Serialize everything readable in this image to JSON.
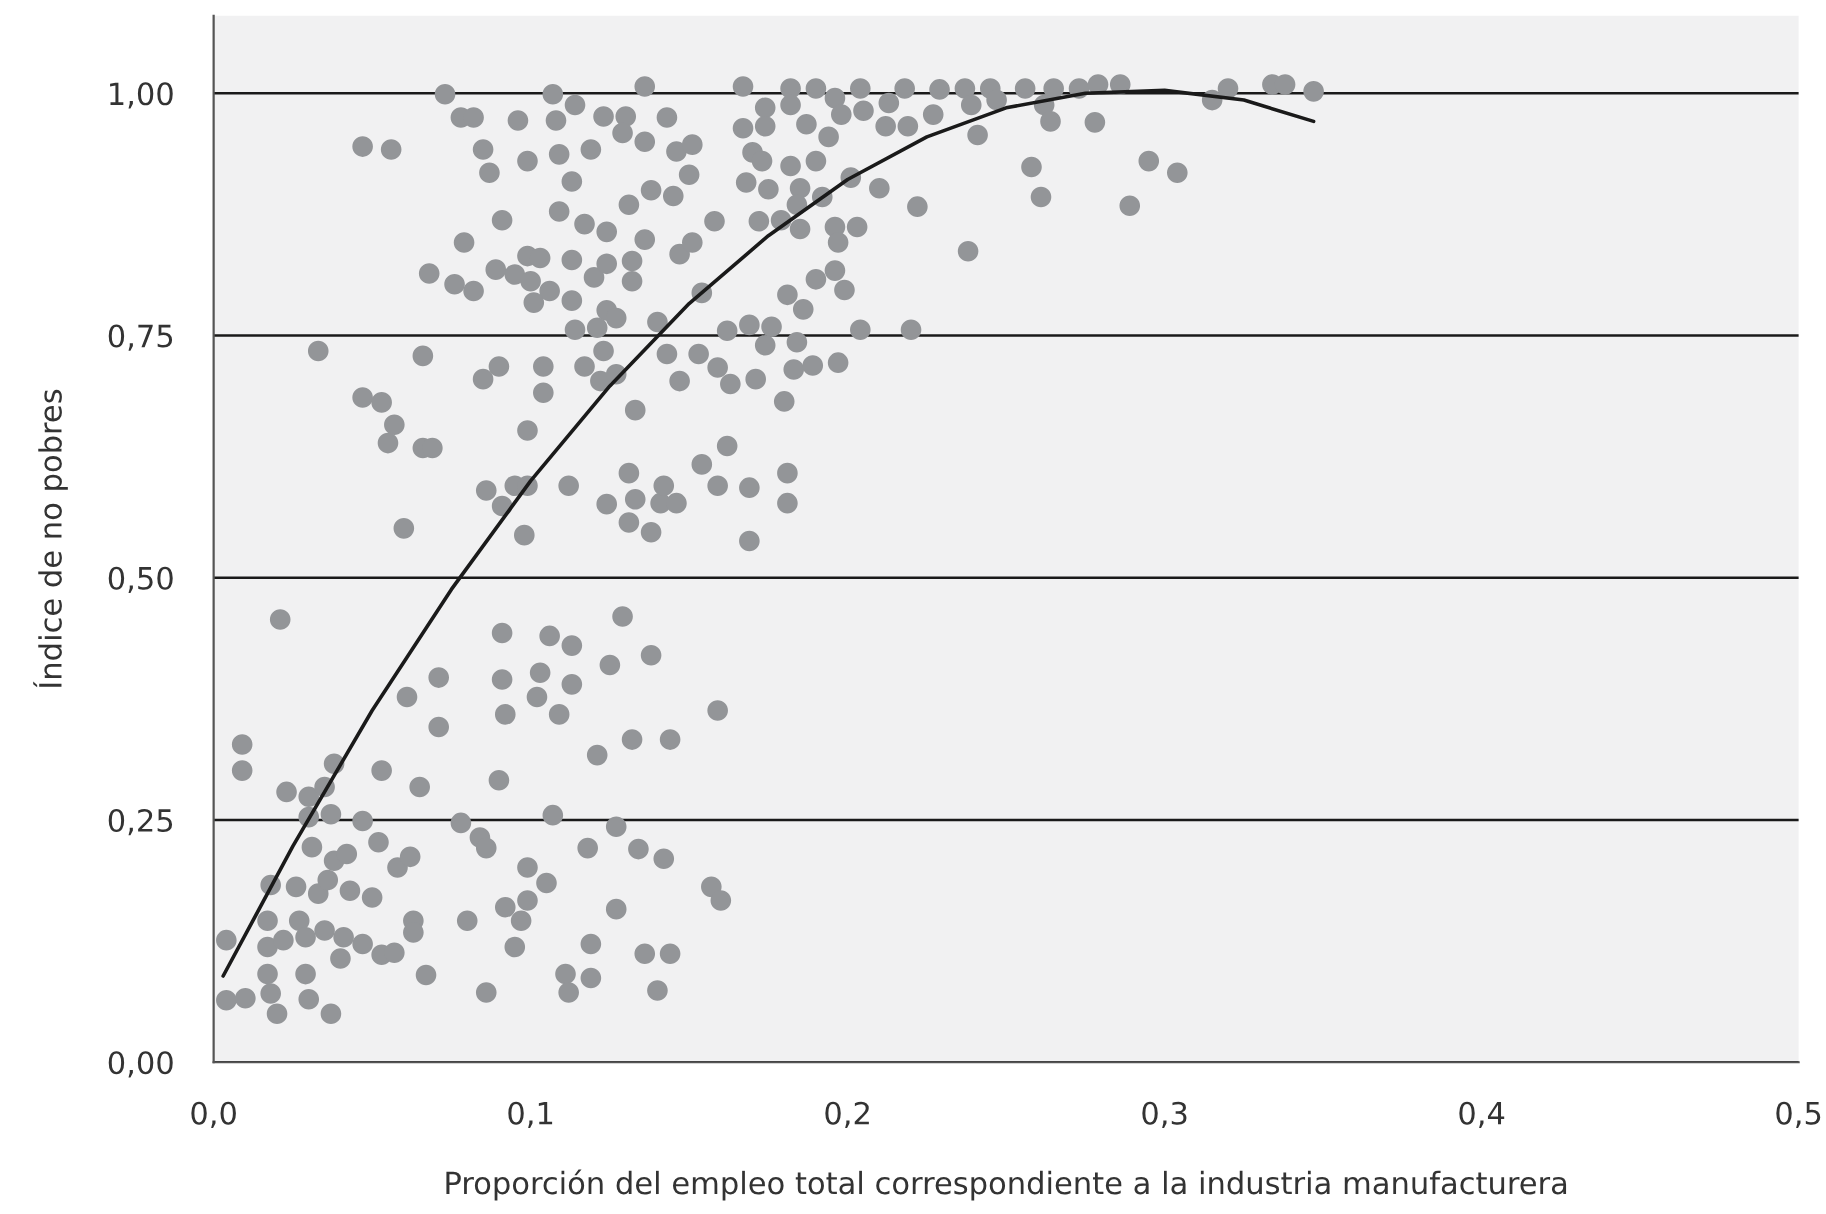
{
  "chart_data": {
    "type": "scatter",
    "xlabel": "Proporción del empleo total correspondiente a la industria manufacturera",
    "ylabel": "Índice de no pobres",
    "xlim": [
      0,
      0.5
    ],
    "ylim": [
      0,
      1.08
    ],
    "xticks": [
      {
        "value": 0,
        "label": "0,0"
      },
      {
        "value": 0.1,
        "label": "0,1"
      },
      {
        "value": 0.2,
        "label": "0,2"
      },
      {
        "value": 0.3,
        "label": "0,3"
      },
      {
        "value": 0.4,
        "label": "0,4"
      },
      {
        "value": 0.5,
        "label": "0,5"
      }
    ],
    "yticks": [
      {
        "value": 0,
        "label": "0,00"
      },
      {
        "value": 0.25,
        "label": "0,25"
      },
      {
        "value": 0.5,
        "label": "0,50"
      },
      {
        "value": 0.75,
        "label": "0,75"
      },
      {
        "value": 1,
        "label": "1,00"
      }
    ],
    "grid": "y",
    "marker": "circle",
    "series": [
      {
        "color": "#939598",
        "x": [
          0.004,
          0.004,
          0.01,
          0.009,
          0.009,
          0.017,
          0.018,
          0.017,
          0.02,
          0.018,
          0.017,
          0.022,
          0.021,
          0.023,
          0.026,
          0.027,
          0.029,
          0.03,
          0.029,
          0.03,
          0.03,
          0.031,
          0.033,
          0.035,
          0.036,
          0.037,
          0.038,
          0.038,
          0.037,
          0.035,
          0.04,
          0.042,
          0.041,
          0.043,
          0.047,
          0.047,
          0.05,
          0.052,
          0.053,
          0.053,
          0.057,
          0.058,
          0.062,
          0.063,
          0.063,
          0.067,
          0.065,
          0.061,
          0.071,
          0.071,
          0.078,
          0.08,
          0.084,
          0.086,
          0.086,
          0.09,
          0.091,
          0.091,
          0.092,
          0.092,
          0.095,
          0.097,
          0.099,
          0.099,
          0.105,
          0.103,
          0.102,
          0.106,
          0.107,
          0.109,
          0.111,
          0.112,
          0.113,
          0.113,
          0.119,
          0.119,
          0.118,
          0.121,
          0.127,
          0.127,
          0.125,
          0.132,
          0.134,
          0.136,
          0.14,
          0.142,
          0.144,
          0.144,
          0.138,
          0.157,
          0.16,
          0.159,
          0.129,
          0.073,
          0.078,
          0.082,
          0.096,
          0.108,
          0.107,
          0.114,
          0.123,
          0.13,
          0.136,
          0.143,
          0.047,
          0.056,
          0.085,
          0.099,
          0.109,
          0.119,
          0.087,
          0.113,
          0.129,
          0.136,
          0.146,
          0.151,
          0.15,
          0.091,
          0.079,
          0.109,
          0.117,
          0.124,
          0.131,
          0.138,
          0.145,
          0.158,
          0.099,
          0.103,
          0.089,
          0.068,
          0.076,
          0.082,
          0.095,
          0.1,
          0.106,
          0.113,
          0.12,
          0.124,
          0.132,
          0.132,
          0.136,
          0.147,
          0.151,
          0.101,
          0.113,
          0.124,
          0.127,
          0.114,
          0.121,
          0.14,
          0.154,
          0.162,
          0.033,
          0.066,
          0.09,
          0.085,
          0.104,
          0.104,
          0.117,
          0.122,
          0.127,
          0.123,
          0.143,
          0.147,
          0.153,
          0.159,
          0.163,
          0.047,
          0.053,
          0.057,
          0.055,
          0.066,
          0.069,
          0.099,
          0.133,
          0.162,
          0.154,
          0.06,
          0.086,
          0.095,
          0.099,
          0.091,
          0.112,
          0.124,
          0.131,
          0.133,
          0.141,
          0.146,
          0.142,
          0.159,
          0.169,
          0.098,
          0.131,
          0.138,
          0.169,
          0.167,
          0.182,
          0.19,
          0.204,
          0.218,
          0.229,
          0.237,
          0.245,
          0.256,
          0.265,
          0.273,
          0.279,
          0.286,
          0.32,
          0.315,
          0.334,
          0.338,
          0.347,
          0.174,
          0.182,
          0.196,
          0.213,
          0.239,
          0.247,
          0.262,
          0.198,
          0.187,
          0.174,
          0.167,
          0.212,
          0.219,
          0.227,
          0.205,
          0.194,
          0.241,
          0.264,
          0.278,
          0.295,
          0.304,
          0.258,
          0.261,
          0.289,
          0.17,
          0.173,
          0.182,
          0.19,
          0.168,
          0.175,
          0.185,
          0.192,
          0.201,
          0.21,
          0.222,
          0.184,
          0.172,
          0.179,
          0.185,
          0.196,
          0.203,
          0.197,
          0.238,
          0.19,
          0.196,
          0.199,
          0.181,
          0.186,
          0.169,
          0.176,
          0.204,
          0.22,
          0.174,
          0.184,
          0.183,
          0.189,
          0.197,
          0.171,
          0.18,
          0.181,
          0.181
        ],
        "values": [
          0.126,
          0.064,
          0.066,
          0.328,
          0.301,
          0.119,
          0.071,
          0.091,
          0.05,
          0.183,
          0.146,
          0.126,
          0.457,
          0.279,
          0.181,
          0.146,
          0.129,
          0.274,
          0.091,
          0.065,
          0.253,
          0.222,
          0.174,
          0.284,
          0.188,
          0.256,
          0.308,
          0.208,
          0.05,
          0.136,
          0.107,
          0.215,
          0.129,
          0.177,
          0.122,
          0.249,
          0.17,
          0.227,
          0.301,
          0.111,
          0.113,
          0.201,
          0.212,
          0.146,
          0.134,
          0.09,
          0.284,
          0.377,
          0.346,
          0.397,
          0.247,
          0.146,
          0.232,
          0.221,
          0.072,
          0.291,
          0.395,
          0.443,
          0.359,
          0.16,
          0.119,
          0.146,
          0.167,
          0.201,
          0.185,
          0.402,
          0.377,
          0.44,
          0.255,
          0.359,
          0.091,
          0.072,
          0.39,
          0.43,
          0.122,
          0.087,
          0.221,
          0.317,
          0.243,
          0.158,
          0.41,
          0.333,
          0.22,
          0.112,
          0.074,
          0.21,
          0.112,
          0.333,
          0.42,
          0.181,
          0.167,
          0.363,
          0.46,
          0.999,
          0.975,
          0.975,
          0.972,
          0.972,
          0.999,
          0.988,
          0.976,
          0.976,
          1.007,
          0.975,
          0.945,
          0.942,
          0.942,
          0.93,
          0.937,
          0.942,
          0.918,
          0.909,
          0.959,
          0.95,
          0.94,
          0.947,
          0.916,
          0.869,
          0.846,
          0.878,
          0.865,
          0.857,
          0.885,
          0.9,
          0.894,
          0.868,
          0.832,
          0.83,
          0.818,
          0.814,
          0.803,
          0.796,
          0.813,
          0.806,
          0.796,
          0.828,
          0.81,
          0.824,
          0.827,
          0.806,
          0.849,
          0.834,
          0.846,
          0.784,
          0.786,
          0.776,
          0.768,
          0.756,
          0.758,
          0.764,
          0.794,
          0.755,
          0.734,
          0.729,
          0.718,
          0.705,
          0.718,
          0.691,
          0.718,
          0.703,
          0.71,
          0.734,
          0.731,
          0.703,
          0.731,
          0.717,
          0.7,
          0.686,
          0.681,
          0.658,
          0.639,
          0.634,
          0.634,
          0.652,
          0.673,
          0.636,
          0.617,
          0.551,
          0.59,
          0.595,
          0.595,
          0.574,
          0.595,
          0.576,
          0.608,
          0.581,
          0.577,
          0.577,
          0.595,
          0.595,
          0.593,
          0.544,
          0.557,
          0.547,
          0.538,
          1.007,
          1.005,
          1.005,
          1.005,
          1.005,
          1.004,
          1.005,
          1.005,
          1.005,
          1.005,
          1.005,
          1.009,
          1.009,
          1.005,
          0.993,
          1.009,
          1.009,
          1.002,
          0.985,
          0.988,
          0.995,
          0.99,
          0.988,
          0.993,
          0.988,
          0.978,
          0.968,
          0.966,
          0.964,
          0.966,
          0.966,
          0.978,
          0.982,
          0.955,
          0.957,
          0.971,
          0.97,
          0.93,
          0.918,
          0.924,
          0.893,
          0.884,
          0.939,
          0.93,
          0.925,
          0.93,
          0.908,
          0.901,
          0.902,
          0.893,
          0.913,
          0.902,
          0.883,
          0.885,
          0.868,
          0.869,
          0.86,
          0.862,
          0.862,
          0.846,
          0.837,
          0.808,
          0.817,
          0.797,
          0.792,
          0.777,
          0.761,
          0.759,
          0.756,
          0.756,
          0.74,
          0.743,
          0.715,
          0.719,
          0.722,
          0.705,
          0.682,
          0.608,
          0.577
        ]
      },
      {
        "type": "line",
        "color": "#1a1a1a",
        "marker": "none",
        "x": [
          0.003,
          0.025,
          0.05,
          0.075,
          0.1,
          0.125,
          0.15,
          0.175,
          0.2,
          0.225,
          0.25,
          0.275,
          0.3,
          0.325,
          0.347
        ],
        "values": [
          0.089,
          0.223,
          0.363,
          0.488,
          0.6,
          0.698,
          0.783,
          0.853,
          0.911,
          0.955,
          0.985,
          1.0,
          1.003,
          0.993,
          0.971
        ]
      }
    ]
  }
}
